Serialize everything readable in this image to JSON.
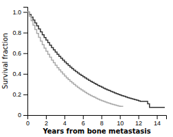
{
  "chart_data": {
    "type": "step",
    "xlabel": "Years from bone metastasis",
    "ylabel": "Survival fraction",
    "xlim": [
      0,
      15
    ],
    "ylim": [
      0,
      1.05
    ],
    "xticks": [
      0,
      2,
      4,
      6,
      8,
      10,
      12,
      14
    ],
    "yticks": [
      0,
      0.2,
      0.4,
      0.6,
      0.8,
      {
        "value": 1.0,
        "label": "1.0"
      }
    ],
    "series": [
      {
        "color": "#333333",
        "x": [
          0,
          0.2,
          0.4,
          0.6,
          0.8,
          1.0,
          1.2,
          1.4,
          1.6,
          1.8,
          2.0,
          2.2,
          2.4,
          2.6,
          2.8,
          3.0,
          3.2,
          3.4,
          3.6,
          3.8,
          4.0,
          4.2,
          4.4,
          4.6,
          4.8,
          5.0,
          5.2,
          5.4,
          5.6,
          5.8,
          6.0,
          6.2,
          6.4,
          6.6,
          6.8,
          7.0,
          7.2,
          7.4,
          7.6,
          7.8,
          8.0,
          8.2,
          8.4,
          8.6,
          8.8,
          9.0,
          9.2,
          9.4,
          9.6,
          9.8,
          10.0,
          10.2,
          10.4,
          10.6,
          10.8,
          11.0,
          11.2,
          11.4,
          11.6,
          11.8,
          12.0,
          12.2,
          13.0,
          13.2,
          14.8
        ],
        "values": [
          1.0,
          0.975,
          0.95,
          0.922,
          0.894,
          0.865,
          0.836,
          0.808,
          0.78,
          0.753,
          0.727,
          0.702,
          0.678,
          0.655,
          0.633,
          0.611,
          0.59,
          0.57,
          0.551,
          0.533,
          0.515,
          0.498,
          0.482,
          0.466,
          0.451,
          0.436,
          0.422,
          0.409,
          0.396,
          0.384,
          0.372,
          0.36,
          0.349,
          0.338,
          0.327,
          0.317,
          0.307,
          0.297,
          0.288,
          0.279,
          0.27,
          0.261,
          0.253,
          0.245,
          0.237,
          0.229,
          0.222,
          0.215,
          0.208,
          0.201,
          0.194,
          0.188,
          0.182,
          0.176,
          0.17,
          0.165,
          0.159,
          0.154,
          0.149,
          0.144,
          0.138,
          0.133,
          0.11,
          0.075,
          0.07
        ]
      },
      {
        "color": "#aaaaaa",
        "x": [
          0,
          0.2,
          0.4,
          0.6,
          0.8,
          1.0,
          1.2,
          1.4,
          1.6,
          1.8,
          2.0,
          2.2,
          2.4,
          2.6,
          2.8,
          3.0,
          3.2,
          3.4,
          3.6,
          3.8,
          4.0,
          4.2,
          4.4,
          4.6,
          4.8,
          5.0,
          5.2,
          5.4,
          5.6,
          5.8,
          6.0,
          6.2,
          6.4,
          6.6,
          6.8,
          7.0,
          7.2,
          7.4,
          7.6,
          7.8,
          8.0,
          8.2,
          8.4,
          8.6,
          8.8,
          9.0,
          9.2,
          9.4,
          9.6,
          9.8,
          10.0,
          10.2,
          10.3
        ],
        "values": [
          1.0,
          0.958,
          0.915,
          0.872,
          0.831,
          0.792,
          0.754,
          0.718,
          0.683,
          0.65,
          0.619,
          0.589,
          0.561,
          0.534,
          0.508,
          0.484,
          0.461,
          0.439,
          0.418,
          0.398,
          0.379,
          0.361,
          0.344,
          0.328,
          0.312,
          0.297,
          0.283,
          0.269,
          0.256,
          0.244,
          0.232,
          0.221,
          0.21,
          0.2,
          0.19,
          0.181,
          0.172,
          0.163,
          0.155,
          0.147,
          0.14,
          0.133,
          0.126,
          0.12,
          0.114,
          0.108,
          0.103,
          0.098,
          0.093,
          0.088,
          0.084,
          0.084,
          0.08
        ]
      }
    ]
  }
}
